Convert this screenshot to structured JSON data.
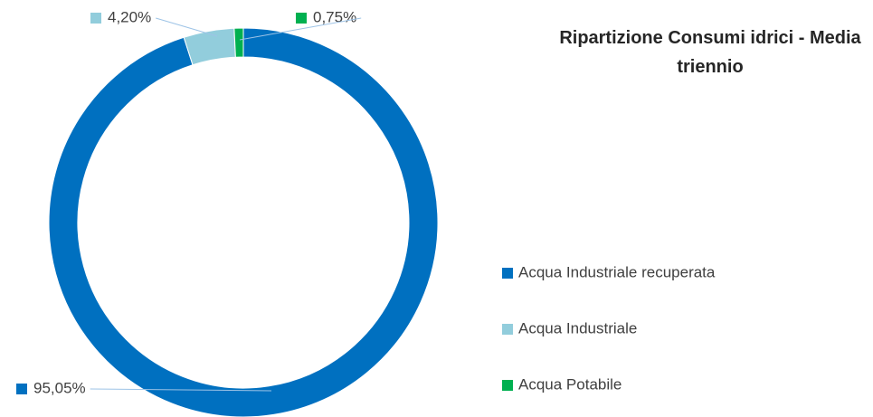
{
  "chart_data": {
    "type": "donut",
    "title": "Ripartizione Consumi idrici - Media triennio",
    "categories": [
      "Acqua Industriale recuperata",
      "Acqua Industriale",
      "Acqua Potabile"
    ],
    "values": [
      95.05,
      4.2,
      0.75
    ],
    "value_labels": [
      "95,05%",
      "4,20%",
      "0,75%"
    ],
    "colors": [
      "#0070c0",
      "#92cddc",
      "#00b050"
    ],
    "legend": "right"
  }
}
